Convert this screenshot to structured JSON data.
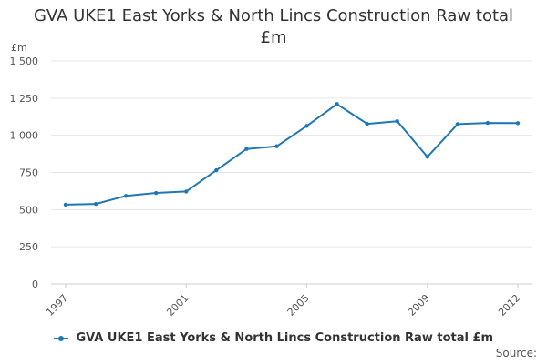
{
  "chart_data": {
    "type": "line",
    "title": "GVA UKE1 East Yorks & North Lincs Construction Raw total £m",
    "title_lines": [
      "GVA UKE1 East Yorks & North Lincs Construction Raw total",
      "£m"
    ],
    "ylabel": "£m",
    "xlabel": "",
    "x": [
      1997,
      1998,
      1999,
      2000,
      2001,
      2002,
      2003,
      2004,
      2005,
      2006,
      2007,
      2008,
      2009,
      2010,
      2011,
      2012
    ],
    "x_tick_labels": [
      "1997",
      "2001",
      "2005",
      "2009",
      "2012"
    ],
    "y_ticks": [
      0,
      250,
      500,
      750,
      1000,
      1250,
      1500
    ],
    "y_tick_labels": [
      "0",
      "250",
      "500",
      "750",
      "1 000",
      "1 250",
      "1 500"
    ],
    "ylim": [
      0,
      1500
    ],
    "grid": true,
    "legend_position": "bottom",
    "series": [
      {
        "name": "GVA UKE1 East Yorks & North Lincs Construction Raw total £m",
        "color": "#1f78b4",
        "values": [
          533,
          538,
          592,
          612,
          622,
          765,
          908,
          926,
          1063,
          1210,
          1077,
          1095,
          855,
          1075,
          1083,
          1082
        ]
      }
    ]
  },
  "source_label": "Source:"
}
